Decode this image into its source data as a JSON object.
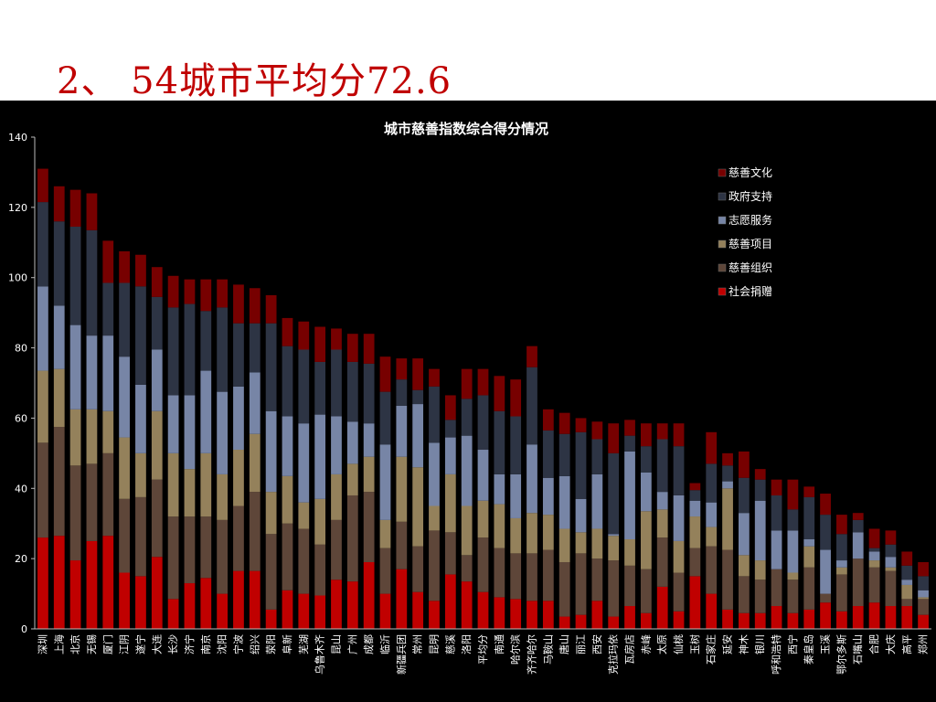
{
  "slide": {
    "title": "2、 54城市平均分72.6"
  },
  "chart_data": {
    "type": "bar",
    "stacked": true,
    "title": "城市慈善指数综合得分情况",
    "xlabel": "",
    "ylabel": "",
    "ylim": [
      0,
      140
    ],
    "yticks": [
      0,
      20,
      40,
      60,
      80,
      100,
      120,
      140
    ],
    "grid": false,
    "legend_position": "right",
    "background": "#000000",
    "categories": [
      "深圳",
      "上海",
      "北京",
      "无锡",
      "厦门",
      "江阴",
      "遂宁",
      "大连",
      "长沙",
      "济宁",
      "南京",
      "沈阳",
      "宁波",
      "绍兴",
      "荥阳",
      "阜新",
      "芜湖",
      "乌鲁木齐",
      "昆山",
      "广州",
      "成都",
      "临沂",
      "新疆兵团",
      "常州",
      "昆明",
      "慈溪",
      "洛阳",
      "平均分",
      "南通",
      "哈尔滨",
      "齐齐哈尔",
      "马鞍山",
      "唐山",
      "丽江",
      "西安",
      "克拉玛依",
      "瓦房店",
      "赤峰",
      "太原",
      "仙桃",
      "玉树",
      "石家庄",
      "延安",
      "神木",
      "银川",
      "呼和浩特",
      "西宁",
      "秦皇岛",
      "玉溪",
      "鄂尔多斯",
      "石嘴山",
      "合肥",
      "大庆",
      "高平",
      "郑州"
    ],
    "series": [
      {
        "name": "社会捐赠",
        "color": "#c00000",
        "values": [
          26,
          26.5,
          19.5,
          25,
          26.5,
          16,
          15,
          20.5,
          8.5,
          13,
          14.5,
          10,
          16.5,
          16.5,
          5.5,
          11,
          10,
          9.5,
          14,
          13.5,
          19,
          10,
          17,
          10.5,
          8,
          15.5,
          13.5,
          10.5,
          9,
          8.5,
          8,
          8,
          3.5,
          4,
          8,
          3.5,
          6.5,
          4.5,
          12,
          5,
          15,
          10,
          5.5,
          4.5,
          4.5,
          6.5,
          4.5,
          5.5,
          7.5,
          5,
          6.5,
          7.5,
          6.5,
          6.5,
          4
        ]
      },
      {
        "name": "慈善组织",
        "color": "#5e4639",
        "values": [
          27,
          31,
          27,
          22,
          23.5,
          21,
          22.5,
          22,
          23.5,
          19,
          17.5,
          21,
          18.5,
          22.5,
          21.5,
          19,
          18.5,
          14.5,
          17,
          24.5,
          20,
          13,
          13.5,
          13,
          20,
          12,
          7.5,
          15.5,
          14,
          13,
          13.5,
          14.5,
          15.5,
          17.5,
          12,
          16,
          11.5,
          12.5,
          14,
          11,
          8,
          13.5,
          17,
          10.5,
          9.5,
          10.5,
          9.5,
          12,
          2.5,
          10.5,
          13.5,
          10,
          10,
          2,
          4.5
        ]
      },
      {
        "name": "慈善项目",
        "color": "#94815b",
        "values": [
          20.5,
          16.5,
          16,
          15.5,
          12,
          17.5,
          12.5,
          19.5,
          18,
          13.5,
          18,
          13,
          16,
          16.5,
          12,
          13.5,
          7.5,
          13,
          13,
          9,
          10,
          8,
          18.5,
          22.5,
          7,
          16.5,
          14,
          10.5,
          12.5,
          10,
          11.5,
          10,
          9.5,
          6,
          8.5,
          7,
          7.5,
          16.5,
          8,
          9,
          9,
          5.5,
          17.5,
          6,
          5.5,
          0,
          2,
          6,
          0,
          2,
          0,
          2,
          1,
          4,
          0.5
        ]
      },
      {
        "name": "志愿服务",
        "color": "#7785a6",
        "values": [
          24,
          18,
          24,
          21,
          21.5,
          23,
          19.5,
          17.5,
          16.5,
          21,
          23.5,
          23.5,
          18,
          17.5,
          23,
          17,
          22.5,
          24,
          16.5,
          12,
          9.5,
          21.5,
          14.5,
          18,
          18,
          10.5,
          20,
          14.5,
          8.5,
          12.5,
          19.5,
          10.5,
          15,
          9.5,
          15.5,
          0.5,
          25,
          11,
          5,
          13,
          4.5,
          7,
          2,
          12,
          17,
          11,
          12,
          2,
          12.5,
          2,
          7.5,
          2.5,
          3,
          1.5,
          2
        ]
      },
      {
        "name": "政府支持",
        "color": "#2d3444",
        "values": [
          24,
          24,
          28,
          30,
          15,
          21,
          28,
          15,
          25,
          26,
          17,
          24,
          18,
          14,
          25,
          20,
          21,
          15,
          19,
          17,
          17,
          15,
          7.5,
          4,
          16,
          5,
          10.5,
          15.5,
          18,
          16.5,
          22,
          13.5,
          12,
          19,
          10,
          23,
          4.5,
          7.5,
          15,
          14,
          3,
          11,
          4.5,
          10,
          6,
          10,
          6,
          12,
          10,
          7.5,
          3.5,
          1,
          3.5,
          4,
          4
        ]
      },
      {
        "name": "慈善文化",
        "color": "#770000",
        "values": [
          9.5,
          10,
          10.5,
          10.5,
          12,
          9,
          9,
          8.5,
          9,
          7,
          9,
          8,
          11,
          10,
          8,
          8,
          8,
          10,
          6,
          8,
          8.5,
          10,
          6,
          9,
          5,
          7,
          8.5,
          7.5,
          10,
          10.5,
          6,
          6,
          6,
          4,
          5,
          8.5,
          4.5,
          6.5,
          4.5,
          6.5,
          2,
          9,
          3.5,
          7.5,
          3,
          4.5,
          8.5,
          3,
          6,
          5.5,
          2,
          5.5,
          4,
          4,
          4
        ]
      }
    ]
  }
}
